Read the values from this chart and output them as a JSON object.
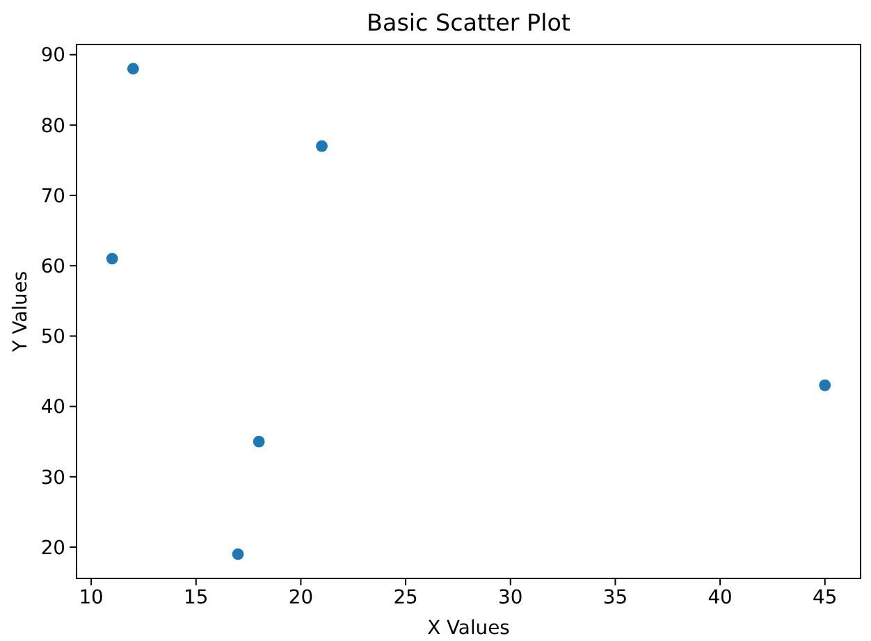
{
  "chart_data": {
    "type": "scatter",
    "title": "Basic Scatter Plot",
    "xlabel": "X Values",
    "ylabel": "Y Values",
    "x": [
      12,
      21,
      11,
      45,
      18,
      17
    ],
    "values": [
      88,
      77,
      61,
      43,
      35,
      19
    ],
    "color": "#1f77b4",
    "marker": "circle",
    "xlim": [
      9.3,
      46.7
    ],
    "ylim": [
      15.55,
      91.45
    ],
    "xticks": [
      10,
      15,
      20,
      25,
      30,
      35,
      40,
      45
    ],
    "yticks": [
      20,
      30,
      40,
      50,
      60,
      70,
      80,
      90
    ]
  }
}
